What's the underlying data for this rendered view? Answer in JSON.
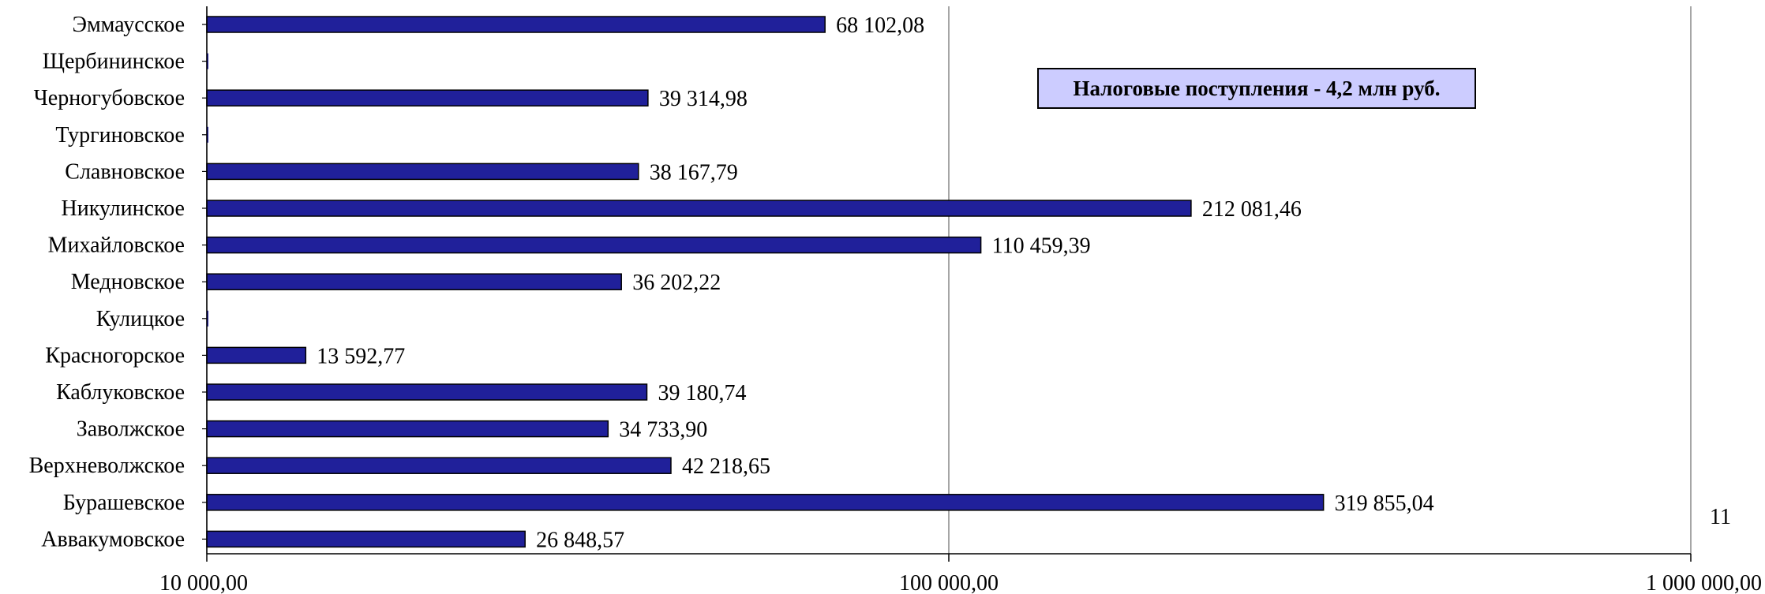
{
  "chart_data": {
    "type": "bar",
    "orientation": "horizontal",
    "x_scale": "log",
    "xlim": [
      10000,
      1000000
    ],
    "x_ticks": [
      "10 000,00",
      "100 000,00",
      "1 000 000,00"
    ],
    "x_tick_values": [
      10000,
      100000,
      1000000
    ],
    "grid": true,
    "bar_color": "#20209a",
    "categories": [
      "Эммаусское",
      "Щербининское",
      "Черногубовское",
      "Тургиновское",
      "Славновское",
      "Никулинское",
      "Михайловское",
      "Медновское",
      "Кулицкое",
      "Красногорское",
      "Каблуковское",
      "Заволжское",
      "Верхневолжское",
      "Бурашевское",
      "Аввакумовское"
    ],
    "values": [
      68102.08,
      null,
      39314.98,
      null,
      38167.79,
      212081.46,
      110459.39,
      36202.22,
      null,
      13592.77,
      39180.74,
      34733.9,
      42218.65,
      319855.04,
      26848.57
    ],
    "data_labels": [
      "68 102,08",
      "",
      "39 314,98",
      "",
      "38 167,79",
      "212 081,46",
      "110 459,39",
      "36 202,22",
      "",
      "13 592,77",
      "39 180,74",
      "34 733,90",
      "42 218,65",
      "319 855,04",
      "26 848,57"
    ]
  },
  "annotation": {
    "total_text": "Налоговые поступления - 4,2 млн руб."
  },
  "page_number": "11"
}
